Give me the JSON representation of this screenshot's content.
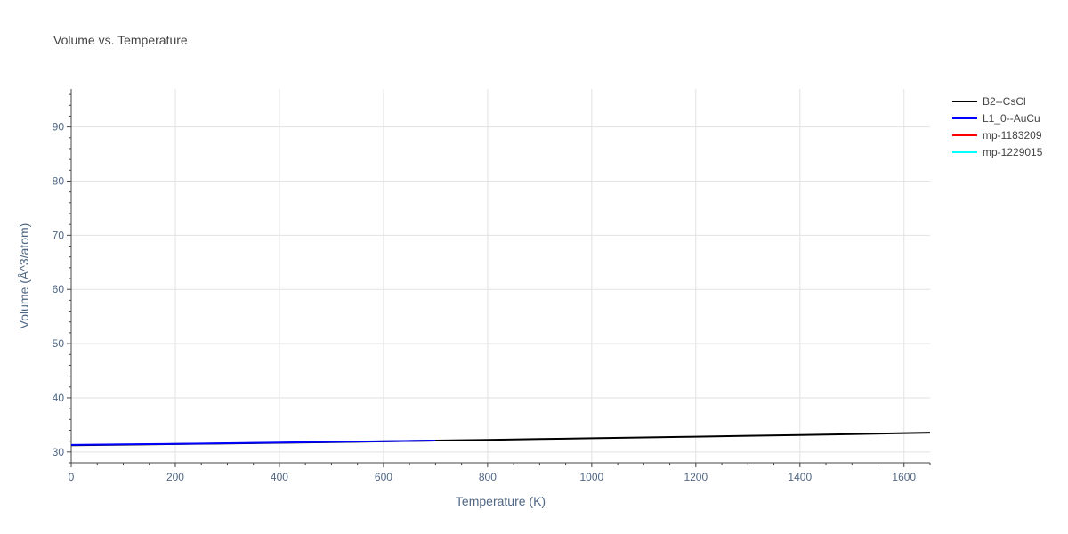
{
  "chart_data": {
    "type": "line",
    "title": "Volume vs. Temperature",
    "xlabel": "Temperature (K)",
    "ylabel": "Volume (Å^3/atom)",
    "xlim": [
      0,
      1650
    ],
    "ylim": [
      28,
      97
    ],
    "xticks": [
      0,
      200,
      400,
      600,
      800,
      1000,
      1200,
      1400,
      1600
    ],
    "yticks": [
      30,
      40,
      50,
      60,
      70,
      80,
      90
    ],
    "grid": true,
    "legend_position": "top-right",
    "series": [
      {
        "name": "B2--CsCl",
        "color": "#000000",
        "x": [
          0,
          100,
          200,
          300,
          400,
          500,
          600,
          700,
          800,
          900,
          1000,
          1100,
          1200,
          1300,
          1400,
          1500,
          1600,
          1650
        ],
        "y": [
          31.25,
          31.35,
          31.46,
          31.58,
          31.7,
          31.83,
          31.96,
          32.1,
          32.24,
          32.38,
          32.53,
          32.68,
          32.83,
          32.99,
          33.15,
          33.31,
          33.48,
          33.57
        ]
      },
      {
        "name": "L1_0--AuCu",
        "color": "#0000ff",
        "x": [
          0,
          100,
          200,
          300,
          400,
          500,
          600,
          700
        ],
        "y": [
          31.3,
          31.4,
          31.5,
          31.62,
          31.74,
          31.86,
          31.98,
          32.1
        ]
      },
      {
        "name": "mp-1183209",
        "color": "#ff0000",
        "x": [],
        "y": []
      },
      {
        "name": "mp-1229015",
        "color": "#00ffff",
        "x": [],
        "y": []
      }
    ]
  }
}
